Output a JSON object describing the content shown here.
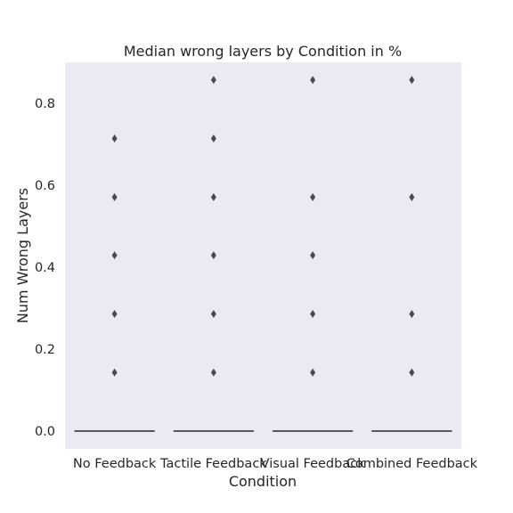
{
  "chart_data": {
    "type": "box",
    "title": "Median wrong layers by Condition in %",
    "xlabel": "Condition",
    "ylabel": "Num Wrong Layers",
    "categories": [
      "No Feedback",
      "Tactile Feedback",
      "Visual Feedback",
      "Combined Feedback"
    ],
    "ylim": [
      -0.045,
      0.9
    ],
    "yticks": [
      0.0,
      0.2,
      0.4,
      0.6,
      0.8
    ],
    "ytick_labels": [
      "0.0",
      "0.2",
      "0.4",
      "0.6",
      "0.8"
    ],
    "grid": false,
    "series": [
      {
        "category": "No Feedback",
        "median": 0.0,
        "q1": 0.0,
        "q3": 0.0,
        "outliers": [
          0.143,
          0.286,
          0.429,
          0.571,
          0.714
        ]
      },
      {
        "category": "Tactile Feedback",
        "median": 0.0,
        "q1": 0.0,
        "q3": 0.0,
        "outliers": [
          0.143,
          0.286,
          0.429,
          0.571,
          0.714,
          0.857
        ]
      },
      {
        "category": "Visual Feedback",
        "median": 0.0,
        "q1": 0.0,
        "q3": 0.0,
        "outliers": [
          0.143,
          0.286,
          0.429,
          0.571,
          0.857
        ]
      },
      {
        "category": "Combined Feedback",
        "median": 0.0,
        "q1": 0.0,
        "q3": 0.0,
        "outliers": [
          0.143,
          0.286,
          0.571,
          0.857
        ]
      }
    ],
    "colors": {
      "plot_background": "#eaeaf2",
      "box_line": "#3f3f3f",
      "outlier": "#4a4a4a"
    }
  }
}
